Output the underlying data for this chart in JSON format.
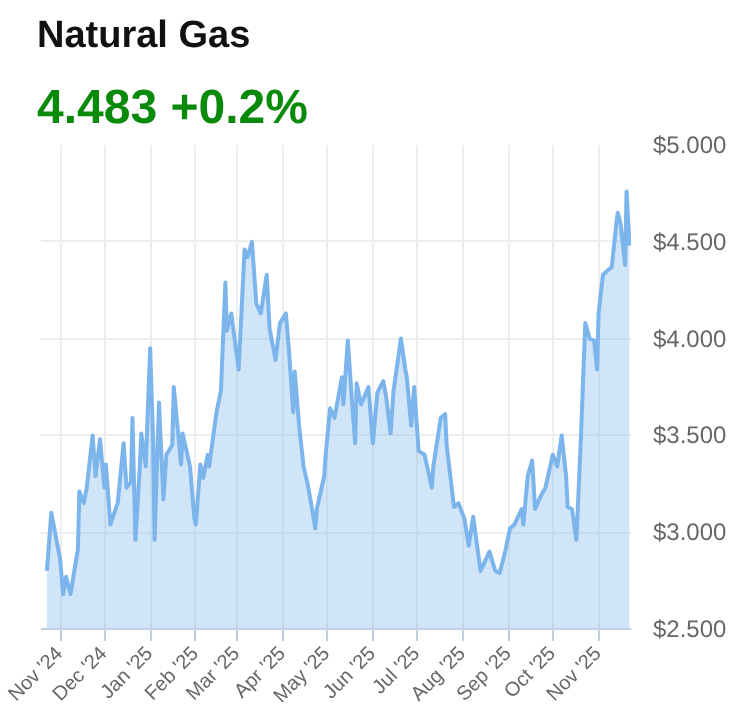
{
  "chart_data": {
    "type": "area",
    "title": "Natural Gas",
    "subtitle": "4.483 +0.2%",
    "x": [
      "2024-10-23",
      "2024-10-26",
      "2024-11-01",
      "2024-11-03",
      "2024-11-05",
      "2024-11-08",
      "2024-11-13",
      "2024-11-14",
      "2024-11-17",
      "2024-11-19",
      "2024-11-23",
      "2024-11-25",
      "2024-11-28",
      "2024-12-01",
      "2024-12-02",
      "2024-12-05",
      "2024-12-10",
      "2024-12-14",
      "2024-12-16",
      "2024-12-19",
      "2024-12-20",
      "2024-12-22",
      "2024-12-25",
      "2024-12-26",
      "2024-12-29",
      "2025-01-01",
      "2025-01-03",
      "2025-01-04",
      "2025-01-07",
      "2025-01-10",
      "2025-01-12",
      "2025-01-16",
      "2025-01-17",
      "2025-01-22",
      "2025-01-23",
      "2025-01-28",
      "2025-01-31",
      "2025-02-01",
      "2025-02-04",
      "2025-02-06",
      "2025-02-09",
      "2025-02-10",
      "2025-02-15",
      "2025-02-18",
      "2025-02-21",
      "2025-02-22",
      "2025-02-25",
      "2025-03-02",
      "2025-03-06",
      "2025-03-08",
      "2025-03-11",
      "2025-03-14",
      "2025-03-17",
      "2025-03-21",
      "2025-03-23",
      "2025-03-27",
      "2025-03-30",
      "2025-04-03",
      "2025-04-05",
      "2025-04-08",
      "2025-04-09",
      "2025-04-12",
      "2025-04-15",
      "2025-04-18",
      "2025-04-23",
      "2025-04-24",
      "2025-04-29",
      "2025-04-30",
      "2025-05-03",
      "2025-05-06",
      "2025-05-11",
      "2025-05-12",
      "2025-05-15",
      "2025-05-18",
      "2025-05-20",
      "2025-05-21",
      "2025-05-24",
      "2025-05-29",
      "2025-06-01",
      "2025-06-04",
      "2025-06-08",
      "2025-06-10",
      "2025-06-13",
      "2025-06-15",
      "2025-06-20",
      "2025-06-23",
      "2025-06-24",
      "2025-06-27",
      "2025-06-29",
      "2025-07-02",
      "2025-07-06",
      "2025-07-11",
      "2025-07-12",
      "2025-07-17",
      "2025-07-20",
      "2025-07-21",
      "2025-07-26",
      "2025-07-29",
      "2025-08-02",
      "2025-08-05",
      "2025-08-08",
      "2025-08-13",
      "2025-08-19",
      "2025-08-23",
      "2025-08-26",
      "2025-08-30",
      "2025-09-02",
      "2025-09-05",
      "2025-09-10",
      "2025-09-11",
      "2025-09-14",
      "2025-09-17",
      "2025-09-19",
      "2025-09-23",
      "2025-09-26",
      "2025-10-01",
      "2025-10-04",
      "2025-10-07",
      "2025-10-10",
      "2025-10-11",
      "2025-10-14",
      "2025-10-17",
      "2025-10-20",
      "2025-10-23",
      "2025-10-26",
      "2025-10-29",
      "2025-10-31",
      "2025-11-01",
      "2025-11-04",
      "2025-11-07",
      "2025-11-10",
      "2025-11-13",
      "2025-11-14",
      "2025-11-16",
      "2025-11-19",
      "2025-11-20",
      "2025-11-22"
    ],
    "series": [
      {
        "color": "#7cb5ec",
        "values": [
          2.8,
          3.1,
          2.86,
          2.68,
          2.77,
          2.68,
          2.91,
          3.21,
          3.15,
          3.23,
          3.5,
          3.29,
          3.48,
          3.23,
          3.35,
          3.04,
          3.15,
          3.46,
          3.23,
          3.26,
          3.59,
          2.96,
          3.34,
          3.51,
          3.34,
          3.95,
          3.48,
          2.96,
          3.67,
          3.17,
          3.4,
          3.45,
          3.75,
          3.35,
          3.51,
          3.34,
          3.07,
          3.04,
          3.35,
          3.28,
          3.4,
          3.34,
          3.62,
          3.73,
          4.29,
          4.04,
          4.13,
          3.84,
          4.46,
          4.42,
          4.5,
          4.18,
          4.13,
          4.33,
          4.05,
          3.89,
          4.08,
          4.13,
          3.95,
          3.62,
          3.83,
          3.55,
          3.34,
          3.24,
          3.02,
          3.12,
          3.29,
          3.4,
          3.64,
          3.59,
          3.8,
          3.66,
          3.99,
          3.66,
          3.46,
          3.77,
          3.66,
          3.75,
          3.46,
          3.72,
          3.78,
          3.7,
          3.51,
          3.73,
          4.0,
          3.84,
          3.8,
          3.55,
          3.75,
          3.42,
          3.4,
          3.23,
          3.34,
          3.59,
          3.61,
          3.45,
          3.13,
          3.15,
          3.07,
          2.93,
          3.08,
          2.8,
          2.9,
          2.8,
          2.79,
          2.91,
          3.02,
          3.04,
          3.12,
          3.04,
          3.29,
          3.37,
          3.12,
          3.19,
          3.23,
          3.4,
          3.34,
          3.5,
          3.29,
          3.13,
          3.12,
          2.96,
          3.48,
          4.08,
          4.0,
          3.99,
          3.84,
          4.13,
          4.33,
          4.35,
          4.37,
          4.59,
          4.65,
          4.59,
          4.38,
          4.76,
          4.48
        ]
      }
    ],
    "xlim": [
      "2024-10-19",
      "2025-11-23"
    ],
    "xticks": [
      {
        "value": "2024-11-01",
        "label": "Nov '24"
      },
      {
        "value": "2024-12-01",
        "label": "Dec '24"
      },
      {
        "value": "2025-01-01",
        "label": "Jan '25"
      },
      {
        "value": "2025-02-01",
        "label": "Feb '25"
      },
      {
        "value": "2025-03-01",
        "label": "Mar '25"
      },
      {
        "value": "2025-04-01",
        "label": "Apr '25"
      },
      {
        "value": "2025-05-01",
        "label": "May '25"
      },
      {
        "value": "2025-06-01",
        "label": "Jun '25"
      },
      {
        "value": "2025-07-01",
        "label": "Jul '25"
      },
      {
        "value": "2025-08-01",
        "label": "Aug '25"
      },
      {
        "value": "2025-09-01",
        "label": "Sep '25"
      },
      {
        "value": "2025-10-01",
        "label": "Oct '25"
      },
      {
        "value": "2025-11-01",
        "label": "Nov '25"
      }
    ],
    "ylim": [
      2.5,
      5.0
    ],
    "yticks": [
      {
        "value": 2.5,
        "label": "$2.500"
      },
      {
        "value": 3.0,
        "label": "$3.000"
      },
      {
        "value": 3.5,
        "label": "$3.500"
      },
      {
        "value": 4.0,
        "label": "$4.000"
      },
      {
        "value": 4.5,
        "label": "$4.500"
      },
      {
        "value": 5.0,
        "label": "$5.000"
      }
    ],
    "grid": true,
    "marker": "none",
    "line_style": "solid"
  }
}
